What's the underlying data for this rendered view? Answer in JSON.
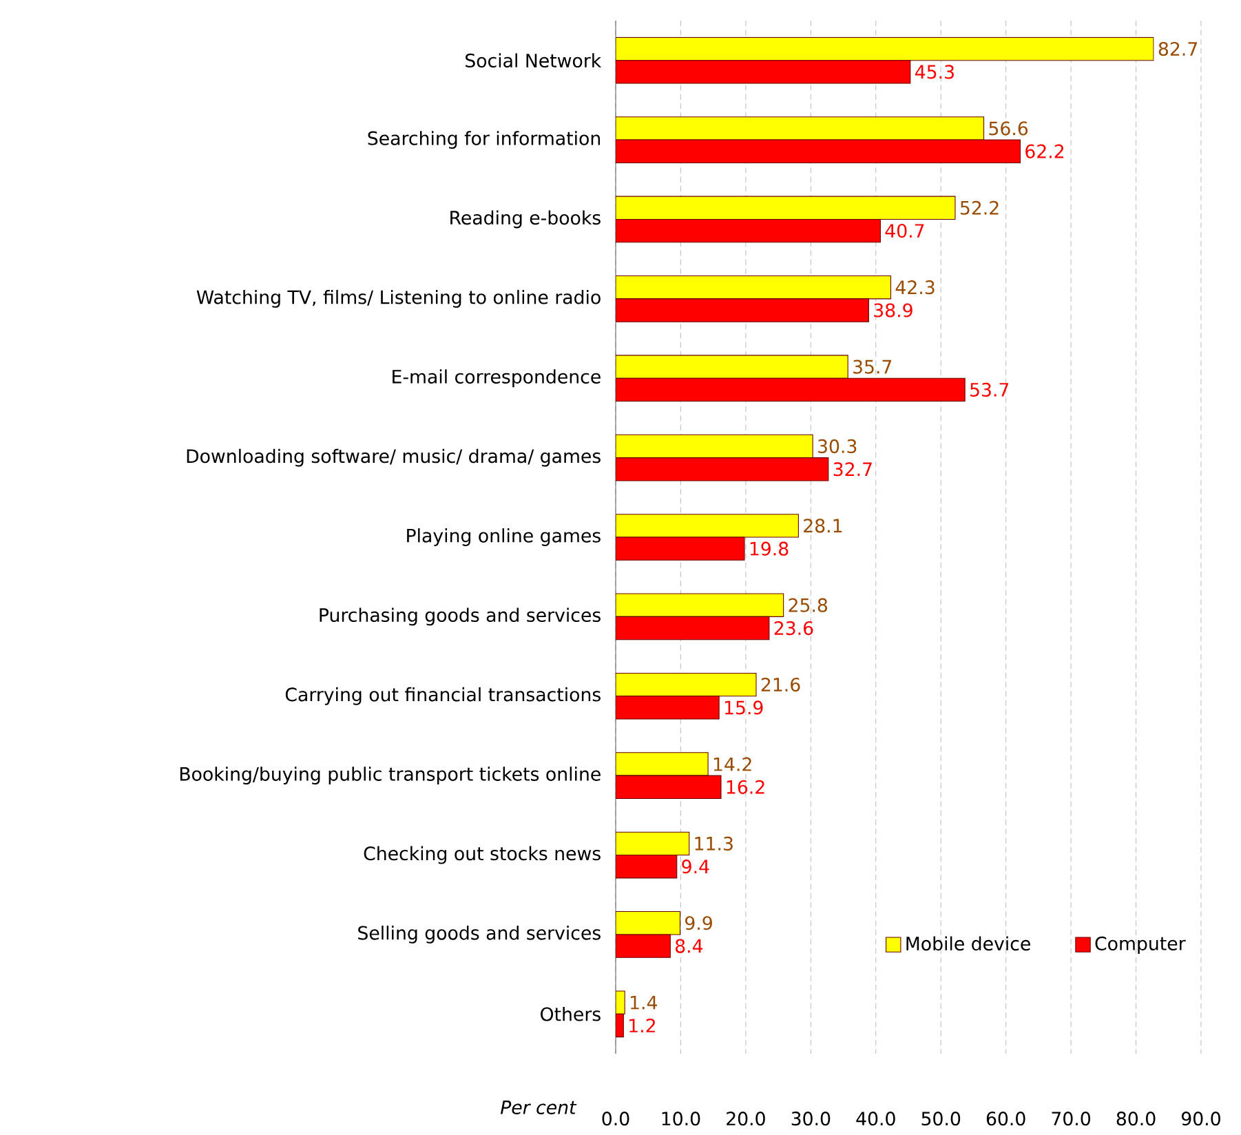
{
  "chart_data": {
    "type": "bar",
    "orientation": "horizontal",
    "xlabel": "Per cent",
    "categories": [
      "Social Network",
      "Searching for information",
      "Reading e-books",
      "Watching TV, films/ Listening to online radio",
      "E-mail correspondence",
      "Downloading software/ music/ drama/ games",
      "Playing online games",
      "Purchasing goods and services",
      "Carrying out financial transactions",
      "Booking/buying public transport tickets online",
      "Checking out stocks news",
      "Selling goods and services",
      "Others"
    ],
    "series": [
      {
        "name": "Mobile device",
        "color": "#ffff00",
        "values": [
          82.7,
          56.6,
          52.2,
          42.3,
          35.7,
          30.3,
          28.1,
          25.8,
          21.6,
          14.2,
          11.3,
          9.9,
          1.4
        ]
      },
      {
        "name": "Computer",
        "color": "#ff0000",
        "values": [
          45.3,
          62.2,
          40.7,
          38.9,
          53.7,
          32.7,
          19.8,
          23.6,
          15.9,
          16.2,
          9.4,
          8.4,
          1.2
        ]
      }
    ],
    "xlim": [
      0,
      90
    ],
    "xticks": [
      {
        "value": 0,
        "label": "0.0"
      },
      {
        "value": 10,
        "label": "10.0"
      },
      {
        "value": 20,
        "label": "20.0"
      },
      {
        "value": 30,
        "label": "30.0"
      },
      {
        "value": 40,
        "label": "40.0"
      },
      {
        "value": 50,
        "label": "50.0"
      },
      {
        "value": 60,
        "label": "60.0"
      },
      {
        "value": 70,
        "label": "70.0"
      },
      {
        "value": 80,
        "label": "80.0"
      },
      {
        "value": 90,
        "label": "90.0"
      }
    ],
    "grid": "x",
    "legend": "bottom right",
    "data_labels": true
  }
}
